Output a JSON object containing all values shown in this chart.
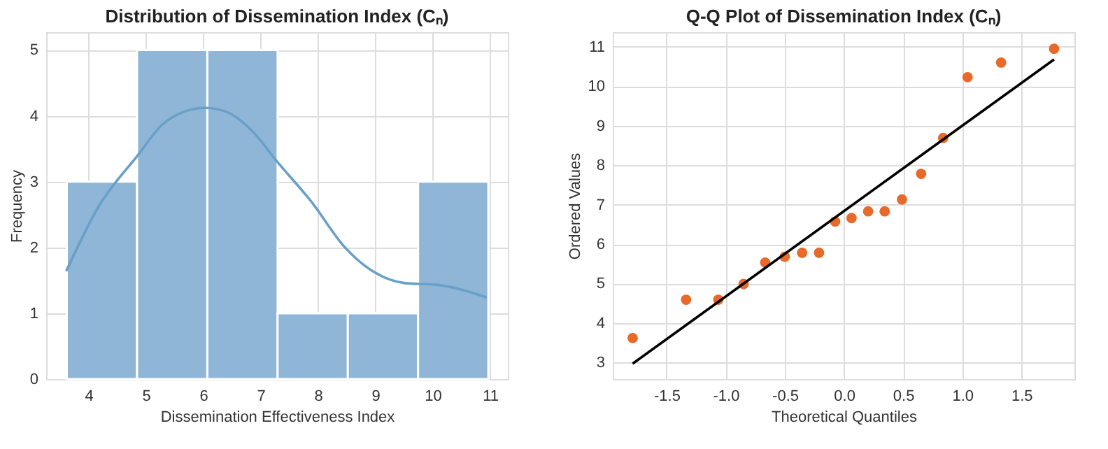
{
  "chart_data": [
    {
      "type": "histogram",
      "title": "Distribution of Dissemination Index (Cₙ)",
      "xlabel": "Dissemination Effectiveness Index",
      "ylabel": "Frequency",
      "bins": [
        3.62,
        4.845,
        6.07,
        7.295,
        8.52,
        9.745,
        10.97
      ],
      "xlim": [
        3.26,
        11.31
      ],
      "xticks": [
        4,
        5,
        6,
        7,
        8,
        9,
        10,
        11
      ],
      "ylim": [
        0,
        5.27
      ],
      "yticks": [
        0,
        1,
        2,
        3,
        4,
        5
      ],
      "grid": true,
      "series": [
        {
          "color": "#8fb6d6",
          "values": [
            3,
            5,
            5,
            1,
            1,
            3
          ]
        },
        {
          "type": "line",
          "color": "#6aa0c8",
          "x": [
            3.61,
            4.18,
            4.85,
            5.29,
            5.66,
            6.03,
            6.4,
            6.84,
            7.29,
            7.88,
            8.47,
            8.99,
            9.5,
            10.09,
            10.54,
            10.94
          ],
          "values": [
            1.64,
            2.63,
            3.39,
            3.87,
            4.06,
            4.12,
            4.06,
            3.78,
            3.3,
            2.7,
            2.0,
            1.62,
            1.46,
            1.43,
            1.35,
            1.24
          ]
        }
      ]
    },
    {
      "type": "scatter",
      "title": "Q-Q Plot of Dissemination Index (Cₙ)",
      "xlabel": "Theoretical Quantiles",
      "ylabel": "Ordered Values",
      "xlim": [
        -1.955,
        1.948
      ],
      "xticks": [
        {
          "value": -1.5,
          "label": "-1.5"
        },
        {
          "value": -1,
          "label": "-1.0"
        },
        {
          "value": -0.5,
          "label": "-0.5"
        },
        {
          "value": 0,
          "label": "0.0"
        },
        {
          "value": 0.5,
          "label": "0.5"
        },
        {
          "value": 1,
          "label": "1.0"
        },
        {
          "value": 1.5,
          "label": "1.5"
        }
      ],
      "ylim": [
        2.58,
        11.37
      ],
      "yticks": [
        3,
        4,
        5,
        6,
        7,
        8,
        9,
        10,
        11
      ],
      "grid": true,
      "series": [
        {
          "marker": "circle",
          "color": "#e8692a",
          "x": [
            -1.787,
            -1.335,
            -1.063,
            -0.849,
            -0.666,
            -0.501,
            -0.354,
            -0.211,
            -0.075,
            0.064,
            0.204,
            0.344,
            0.49,
            0.652,
            0.838,
            1.045,
            1.328,
            1.776
          ],
          "values": [
            3.62,
            4.59,
            4.59,
            4.99,
            5.53,
            5.68,
            5.78,
            5.78,
            6.57,
            6.66,
            6.83,
            6.83,
            7.13,
            7.78,
            8.69,
            10.23,
            10.6,
            10.95
          ]
        },
        {
          "type": "line",
          "color": "#000000",
          "x": [
            -1.787,
            1.776
          ],
          "values": [
            2.97,
            10.68
          ]
        }
      ]
    }
  ]
}
